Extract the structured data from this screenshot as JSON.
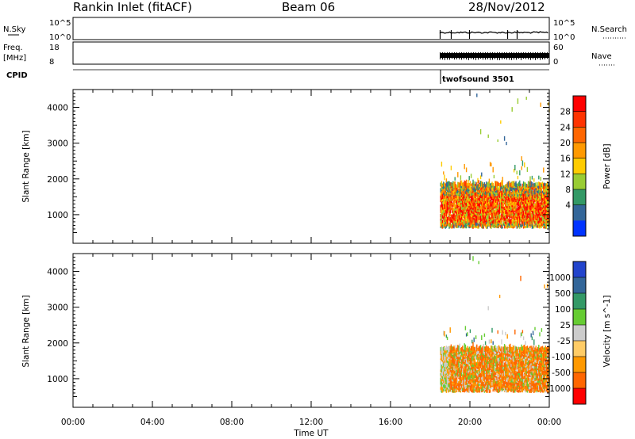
{
  "header": {
    "station": "Rankin Inlet (fitACF)",
    "beam": "Beam 06",
    "date": "28/Nov/2012"
  },
  "strips": {
    "nsky_label": "N.Sky",
    "freq_label_top": "Freq.",
    "freq_label_bottom": "[MHz]",
    "cpid_label": "CPID",
    "nsearch_label": "N.Search",
    "nave_label": "Nave",
    "nsky_ticks": [
      "10^5",
      "10^0"
    ],
    "nsearch_ticks": [
      "10^5",
      "10^0"
    ],
    "freq_ticks": [
      "18",
      "8"
    ],
    "nave_ticks": [
      "60",
      "0"
    ],
    "cpid_text": "twofsound 3501"
  },
  "chart_data": [
    {
      "type": "heatmap",
      "name": "power",
      "ylabel": "Slant Range [km]",
      "xlabel": "Time UT",
      "xlim_hours": [
        0,
        24
      ],
      "ylim": [
        200,
        4500
      ],
      "x_ticks": [
        "00:00",
        "04:00",
        "08:00",
        "12:00",
        "16:00",
        "20:00",
        "00:00"
      ],
      "y_ticks": [
        1000,
        2000,
        3000,
        4000
      ],
      "colorbar": {
        "label": "Power [dB]",
        "ticks": [
          "28",
          "24",
          "20",
          "16",
          "12",
          "8",
          "4"
        ],
        "colors": [
          "#ff0000",
          "#ff3300",
          "#ff6600",
          "#ff9900",
          "#ffcc00",
          "#99cc33",
          "#339966",
          "#336699",
          "#0033ff"
        ]
      },
      "data_start_hours": 18.5,
      "data_end_hours": 24,
      "main_band_km": [
        600,
        1800
      ]
    },
    {
      "type": "heatmap",
      "name": "velocity",
      "ylabel": "Slant Range [km]",
      "xlabel": "Time UT",
      "xlim_hours": [
        0,
        24
      ],
      "ylim": [
        200,
        4500
      ],
      "x_ticks": [
        "00:00",
        "04:00",
        "08:00",
        "12:00",
        "16:00",
        "20:00",
        "00:00"
      ],
      "y_ticks": [
        1000,
        2000,
        3000,
        4000
      ],
      "colorbar": {
        "label": "Velocity [m s^-1]",
        "ticks": [
          "1000",
          "500",
          "100",
          "25",
          "-25",
          "-100",
          "-500",
          "-1000"
        ],
        "colors": [
          "#2244cc",
          "#336699",
          "#339966",
          "#66cc33",
          "#cccccc",
          "#ffcc66",
          "#ff9900",
          "#ff6600",
          "#ff0000"
        ]
      },
      "data_start_hours": 18.5,
      "data_end_hours": 24,
      "main_band_km": [
        600,
        1800
      ]
    }
  ],
  "xaxis": {
    "label": "Time UT"
  }
}
